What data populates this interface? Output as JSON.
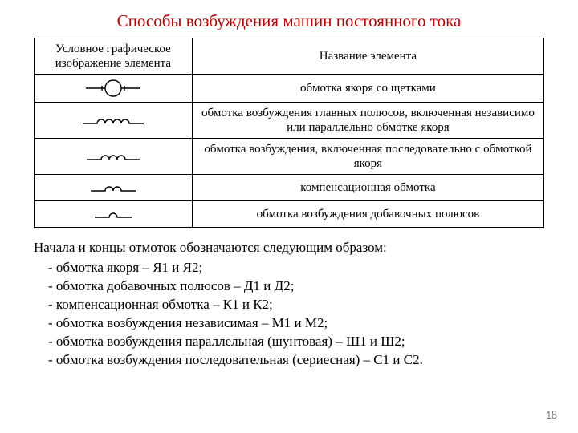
{
  "title": "Способы возбуждения машин постоянного тока",
  "title_color": "#c00000",
  "table": {
    "header_left": "Условное графическое изображение элемента",
    "header_right": "Название элемента",
    "rows": [
      {
        "symbol": "armature",
        "desc": "обмотка якоря со щетками"
      },
      {
        "symbol": "coil4",
        "desc": "обмотка возбуждения главных полюсов, включенная независимо или параллельно обмотке якоря"
      },
      {
        "symbol": "coil3",
        "desc": "обмотка возбуждения, включенная последовательно с обмоткой якоря"
      },
      {
        "symbol": "coil2",
        "desc": "компенсационная обмотка"
      },
      {
        "symbol": "coil1",
        "desc": "обмотка возбуждения добавочных полюсов"
      }
    ],
    "border_color": "#000000",
    "font_size": 15
  },
  "symbol_style": {
    "stroke": "#000000",
    "stroke_width": 1.4,
    "hump_radius": 5,
    "lead_length": 18,
    "circle_radius": 10
  },
  "notes": {
    "intro": "Начала и концы отмоток обозначаются следующим образом:",
    "items": [
      "- обмотка якоря – Я1 и Я2;",
      "- обмотка добавочных полюсов – Д1 и Д2;",
      "- компенсационная обмотка – К1 и К2;",
      "- обмотка возбуждения независимая – М1 и М2;",
      "- обмотка возбуждения параллельная  (шунтовая) – Ш1 и Ш2;",
      "- обмотка возбуждения последовательная  (сериесная) – С1 и С2."
    ],
    "font_size": 17
  },
  "page_number": "18",
  "page_number_color": "#7f7f7f"
}
